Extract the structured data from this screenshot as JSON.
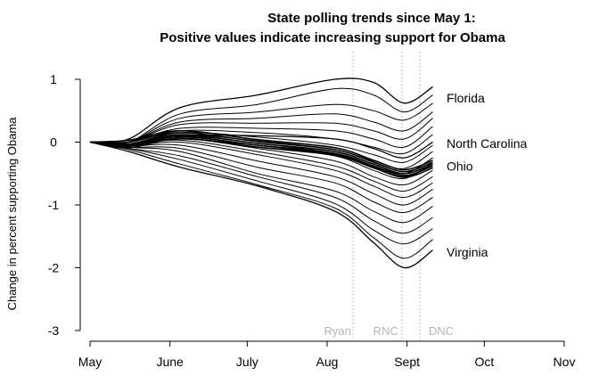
{
  "chart_data": {
    "type": "line",
    "title": "State polling trends since May 1:",
    "subtitle": "Positive values indicate increasing support for Obama",
    "xlabel": "",
    "ylabel": "Change in percent supporting Obama",
    "x_ticks": [
      "May",
      "June",
      "July",
      "Aug",
      "Sept",
      "Oct",
      "Nov"
    ],
    "y_ticks": [
      1,
      0,
      -1,
      -2,
      -3
    ],
    "xlim": [
      "May",
      "Nov"
    ],
    "ylim": [
      -3,
      1
    ],
    "grid": false,
    "events": [
      {
        "label": "Ryan",
        "x": "Aug 11"
      },
      {
        "label": "RNC",
        "x": "Aug 30"
      },
      {
        "label": "DNC",
        "x": "Sept 6"
      }
    ],
    "x_unit": "days since May 1",
    "end_day": 133,
    "series": [
      {
        "name": "Florida",
        "values": [
          0,
          0.05,
          0.55,
          0.75,
          1.0,
          0.95,
          0.62,
          0.88
        ]
      },
      {
        "name": "North Carolina",
        "values": [
          0,
          -0.05,
          0.1,
          0.1,
          0.05,
          -0.1,
          -0.25,
          0.0
        ]
      },
      {
        "name": "Ohio",
        "values": [
          0,
          -0.05,
          0.05,
          -0.05,
          -0.2,
          -0.4,
          -0.55,
          -0.35
        ]
      },
      {
        "name": "Virginia",
        "values": [
          0,
          -0.15,
          -0.4,
          -0.7,
          -1.1,
          -1.6,
          -2.0,
          -1.72
        ]
      }
    ],
    "unlabeled_lines": [
      [
        0,
        0.0,
        0.45,
        0.6,
        0.85,
        0.75,
        0.48,
        0.75
      ],
      [
        0,
        0.0,
        0.38,
        0.48,
        0.6,
        0.5,
        0.35,
        0.62
      ],
      [
        0,
        0.0,
        0.32,
        0.38,
        0.45,
        0.32,
        0.18,
        0.48
      ],
      [
        0,
        0.0,
        0.28,
        0.3,
        0.3,
        0.18,
        0.05,
        0.38
      ],
      [
        0,
        0.0,
        0.22,
        0.22,
        0.18,
        0.05,
        -0.08,
        0.25
      ],
      [
        0,
        0.0,
        0.18,
        0.15,
        0.05,
        -0.08,
        -0.18,
        0.12
      ],
      [
        0,
        -0.03,
        0.15,
        0.08,
        -0.05,
        -0.2,
        -0.32,
        -0.05
      ],
      [
        0,
        -0.03,
        0.12,
        0.02,
        -0.12,
        -0.3,
        -0.42,
        -0.15
      ],
      [
        0,
        -0.03,
        0.1,
        -0.02,
        -0.18,
        -0.38,
        -0.5,
        -0.25
      ],
      [
        0,
        -0.03,
        0.08,
        -0.05,
        -0.22,
        -0.45,
        -0.58,
        -0.32
      ],
      [
        0,
        -0.05,
        0.06,
        -0.1,
        -0.3,
        -0.55,
        -0.68,
        -0.45
      ],
      [
        0,
        -0.05,
        0.03,
        -0.15,
        -0.38,
        -0.62,
        -0.78,
        -0.55
      ],
      [
        0,
        -0.06,
        0.0,
        -0.2,
        -0.45,
        -0.7,
        -0.88,
        -0.65
      ],
      [
        0,
        -0.06,
        -0.05,
        -0.3,
        -0.55,
        -0.82,
        -1.0,
        -0.75
      ],
      [
        0,
        -0.08,
        -0.1,
        -0.4,
        -0.65,
        -0.95,
        -1.12,
        -0.88
      ],
      [
        0,
        -0.08,
        -0.15,
        -0.5,
        -0.78,
        -1.1,
        -1.28,
        -1.02
      ],
      [
        0,
        -0.1,
        -0.22,
        -0.55,
        -0.88,
        -1.25,
        -1.45,
        -1.2
      ],
      [
        0,
        -0.1,
        -0.28,
        -0.62,
        -0.98,
        -1.4,
        -1.62,
        -1.38
      ],
      [
        0,
        -0.12,
        -0.35,
        -0.68,
        -1.05,
        -1.52,
        -1.85,
        -1.55
      ]
    ],
    "knot_days": [
      0,
      15,
      35,
      65,
      95,
      110,
      122,
      133
    ],
    "label_positions": [
      {
        "name": "Florida",
        "y": 0.7
      },
      {
        "name": "North Carolina",
        "y": -0.02
      },
      {
        "name": "Ohio",
        "y": -0.38
      },
      {
        "name": "Virginia",
        "y": -1.75
      }
    ]
  }
}
